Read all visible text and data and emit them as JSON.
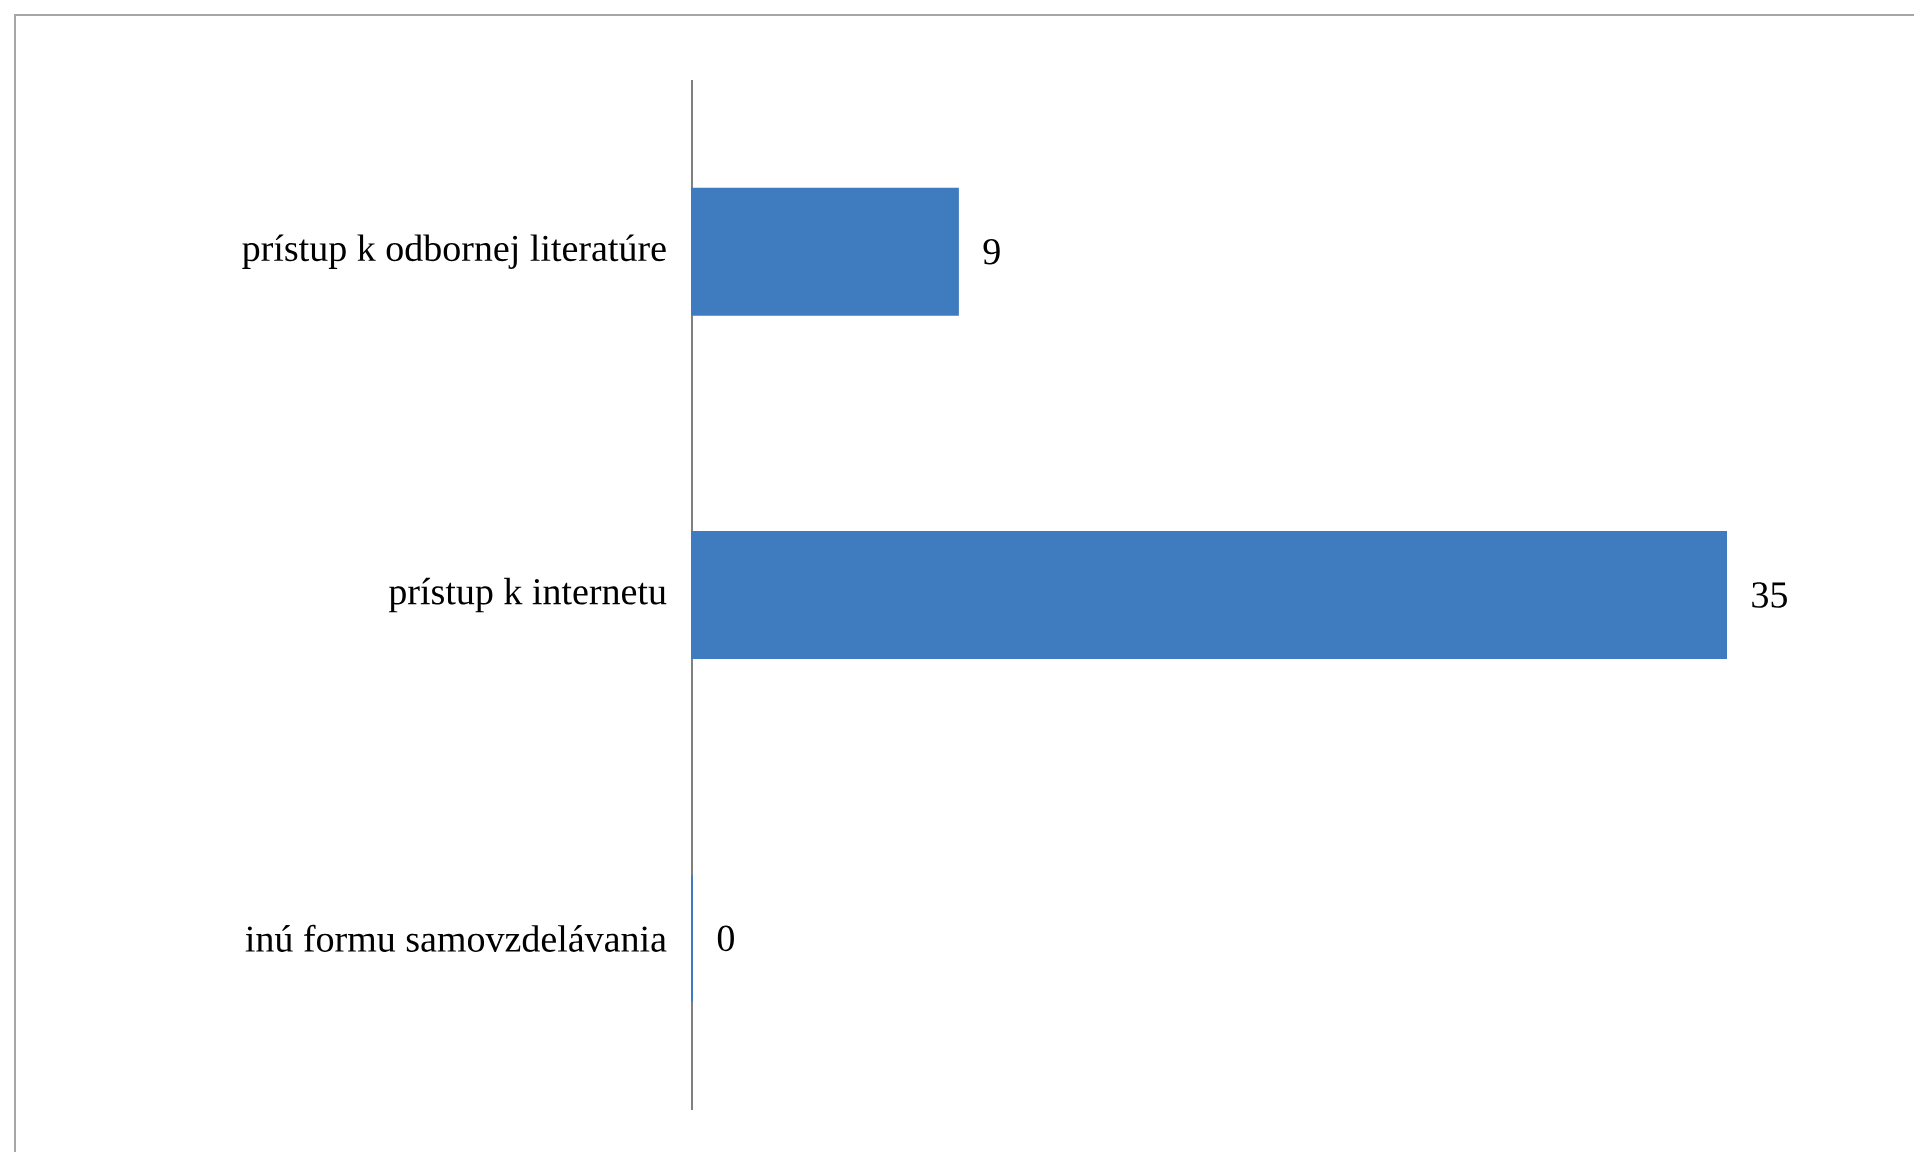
{
  "chart_data": {
    "type": "bar",
    "orientation": "horizontal",
    "categories": [
      "prístup k odbornej literatúre",
      "prístup k internetu",
      "inú formu samovzdelávania"
    ],
    "values": [
      9,
      35,
      0
    ],
    "color": "#3f7cbf",
    "data_labels": true
  }
}
